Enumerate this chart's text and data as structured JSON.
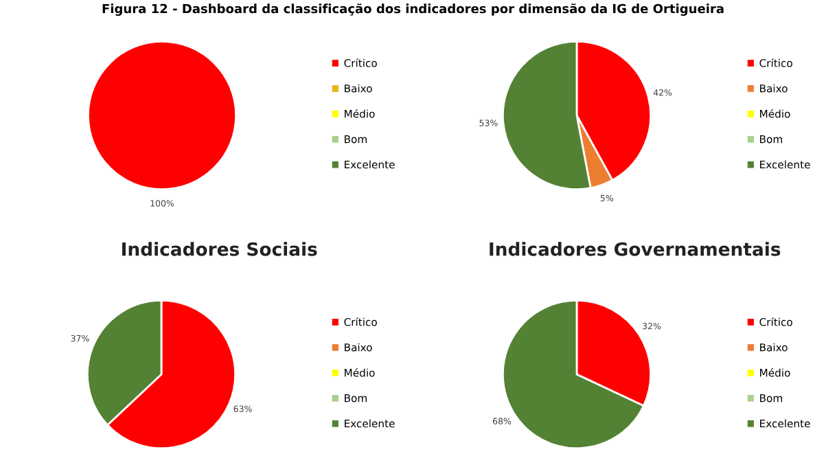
{
  "chart_data": [
    {
      "type": "pie",
      "annotations": [
        "Figura 12 - Dashboard da classificação dos indicadores por dimensão da IG de Ortigueira"
      ],
      "categories": [
        "Crítico",
        "Baixo",
        "Médio",
        "Bom",
        "Excelente"
      ],
      "values": [
        100,
        0,
        0,
        0,
        0
      ],
      "colors": [
        "#ff0000",
        "#e7b416",
        "#ffff00",
        "#a9d18e",
        "#548235"
      ],
      "value_labels": [
        "100%",
        null,
        null,
        null,
        null
      ],
      "legend": "right"
    },
    {
      "type": "pie",
      "categories": [
        "Crítico",
        "Baixo",
        "Médio",
        "Bom",
        "Excelente"
      ],
      "values": [
        42,
        5,
        0,
        0,
        53
      ],
      "colors": [
        "#ff0000",
        "#ed7d31",
        "#ffff00",
        "#a9d18e",
        "#548235"
      ],
      "value_labels": [
        "42%",
        "5%",
        null,
        null,
        "53%"
      ],
      "legend": "right"
    },
    {
      "type": "pie",
      "title": "Indicadores Sociais",
      "categories": [
        "Crítico",
        "Baixo",
        "Médio",
        "Bom",
        "Excelente"
      ],
      "values": [
        63,
        0,
        0,
        0,
        37
      ],
      "colors": [
        "#ff0000",
        "#ed7d31",
        "#ffff00",
        "#a9d18e",
        "#548235"
      ],
      "value_labels": [
        "63%",
        null,
        null,
        null,
        "37%"
      ],
      "legend": "right"
    },
    {
      "type": "pie",
      "title": "Indicadores Governamentais",
      "categories": [
        "Crítico",
        "Baixo",
        "Médio",
        "Bom",
        "Excelente"
      ],
      "values": [
        32,
        0,
        0,
        0,
        68
      ],
      "colors": [
        "#ff0000",
        "#ed7d31",
        "#ffff00",
        "#a9d18e",
        "#548235"
      ],
      "value_labels": [
        "32%",
        null,
        null,
        null,
        "68%"
      ],
      "legend": "right"
    }
  ]
}
